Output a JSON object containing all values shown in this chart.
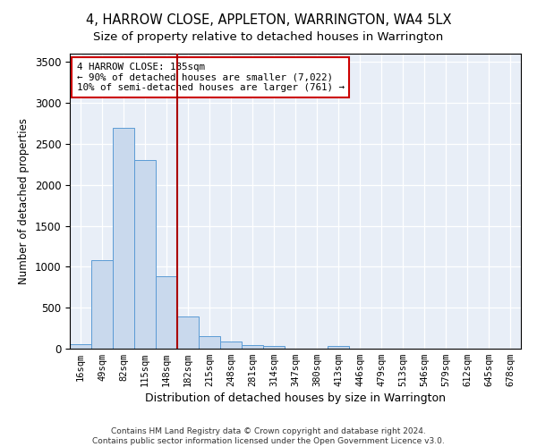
{
  "title": "4, HARROW CLOSE, APPLETON, WARRINGTON, WA4 5LX",
  "subtitle": "Size of property relative to detached houses in Warrington",
  "xlabel": "Distribution of detached houses by size in Warrington",
  "ylabel": "Number of detached properties",
  "categories": [
    "16sqm",
    "49sqm",
    "82sqm",
    "115sqm",
    "148sqm",
    "182sqm",
    "215sqm",
    "248sqm",
    "281sqm",
    "314sqm",
    "347sqm",
    "380sqm",
    "413sqm",
    "446sqm",
    "479sqm",
    "513sqm",
    "546sqm",
    "579sqm",
    "612sqm",
    "645sqm",
    "678sqm"
  ],
  "values": [
    50,
    1080,
    2700,
    2300,
    880,
    390,
    155,
    90,
    45,
    30,
    0,
    0,
    35,
    0,
    0,
    0,
    0,
    0,
    0,
    0,
    0
  ],
  "bar_color": "#c9d9ed",
  "bar_edge_color": "#5b9bd5",
  "vline_color": "#aa0000",
  "annotation_text": "4 HARROW CLOSE: 185sqm\n← 90% of detached houses are smaller (7,022)\n10% of semi-detached houses are larger (761) →",
  "annotation_box_color": "#ffffff",
  "annotation_box_edge": "#cc0000",
  "ylim": [
    0,
    3600
  ],
  "yticks": [
    0,
    500,
    1000,
    1500,
    2000,
    2500,
    3000,
    3500
  ],
  "footer1": "Contains HM Land Registry data © Crown copyright and database right 2024.",
  "footer2": "Contains public sector information licensed under the Open Government Licence v3.0.",
  "bg_color": "#ffffff",
  "plot_bg_color": "#e8eef7",
  "title_fontsize": 10.5,
  "subtitle_fontsize": 9.5
}
